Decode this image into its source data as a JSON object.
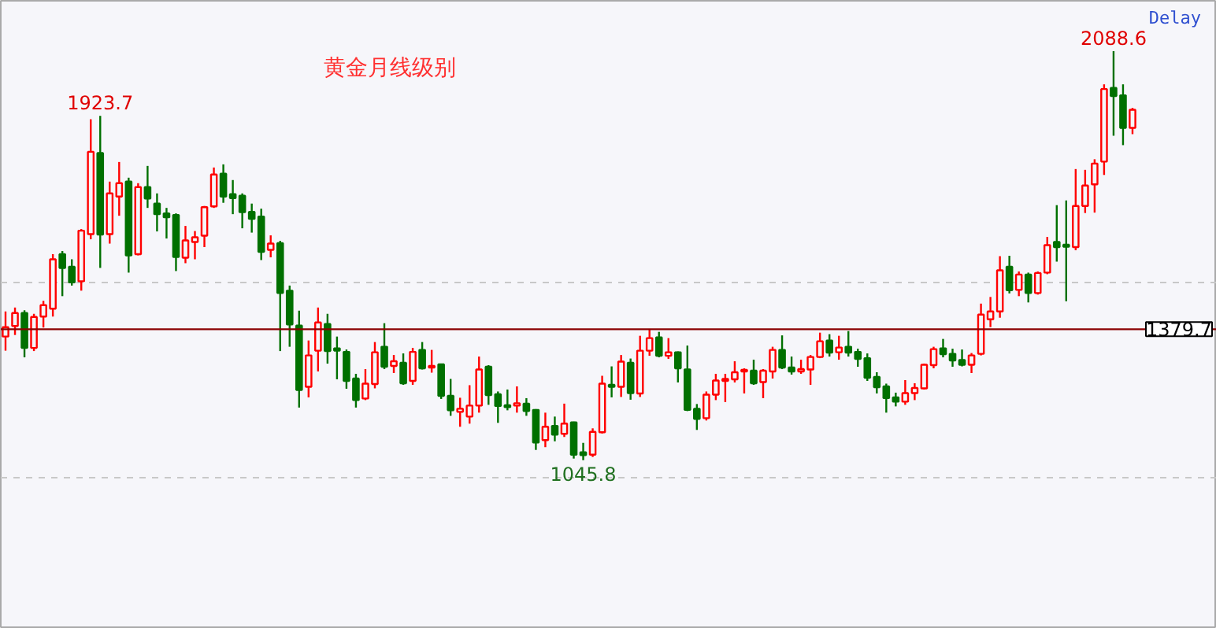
{
  "chart_data": {
    "type": "candlestick",
    "title": "黄金月线级别",
    "categories": [
      null,
      null,
      null,
      null,
      null,
      null,
      null,
      null,
      null,
      null,
      null,
      null,
      null,
      null,
      null,
      null,
      null,
      null,
      null,
      null,
      null,
      null,
      null,
      null,
      null,
      null,
      null,
      null,
      null,
      null,
      null,
      null,
      null,
      null,
      null,
      null,
      null,
      null,
      null,
      null,
      null,
      null,
      null,
      null,
      null,
      null,
      null,
      null,
      null,
      null,
      null,
      null,
      null,
      null,
      null,
      null,
      null,
      null,
      null,
      null,
      null,
      null,
      null,
      null,
      null,
      null,
      null,
      null,
      null,
      null,
      null,
      null,
      null,
      null,
      null,
      null,
      null,
      null,
      null,
      null,
      null,
      null,
      null,
      null,
      null,
      null,
      null,
      null,
      null,
      null,
      null,
      null,
      null,
      null,
      null,
      null,
      null,
      null,
      null,
      null,
      null,
      null,
      null,
      null,
      null,
      null,
      null,
      null,
      null,
      null,
      null,
      null,
      null,
      null,
      null,
      null,
      null,
      null,
      null,
      null
    ],
    "ohlc": [
      [
        1361,
        1425,
        1325,
        1385
      ],
      [
        1388,
        1435,
        1365,
        1421
      ],
      [
        1421,
        1428,
        1308,
        1332
      ],
      [
        1332,
        1419,
        1324,
        1411
      ],
      [
        1412,
        1452,
        1384,
        1441
      ],
      [
        1432,
        1571,
        1412,
        1558
      ],
      [
        1571,
        1579,
        1464,
        1536
      ],
      [
        1539,
        1558,
        1491,
        1499
      ],
      [
        1502,
        1635,
        1478,
        1631
      ],
      [
        1622,
        1915,
        1609,
        1832
      ],
      [
        1829,
        1923.7,
        1536,
        1621
      ],
      [
        1622,
        1756,
        1598,
        1726
      ],
      [
        1718,
        1806,
        1669,
        1752
      ],
      [
        1756,
        1766,
        1524,
        1568
      ],
      [
        1571,
        1752,
        1568,
        1742
      ],
      [
        1742,
        1796,
        1689,
        1713
      ],
      [
        1700,
        1726,
        1629,
        1673
      ],
      [
        1675,
        1689,
        1611,
        1665
      ],
      [
        1671,
        1675,
        1528,
        1564
      ],
      [
        1562,
        1643,
        1548,
        1606
      ],
      [
        1602,
        1630,
        1558,
        1614
      ],
      [
        1618,
        1694,
        1589,
        1691
      ],
      [
        1693,
        1792,
        1689,
        1774
      ],
      [
        1776,
        1800,
        1702,
        1718
      ],
      [
        1724,
        1760,
        1673,
        1714
      ],
      [
        1720,
        1726,
        1637,
        1678
      ],
      [
        1679,
        1700,
        1626,
        1661
      ],
      [
        1667,
        1687,
        1556,
        1577
      ],
      [
        1582,
        1619,
        1563,
        1598
      ],
      [
        1599,
        1605,
        1324,
        1472
      ],
      [
        1478,
        1491,
        1335,
        1392
      ],
      [
        1389,
        1427,
        1180,
        1225
      ],
      [
        1233,
        1351,
        1206,
        1313
      ],
      [
        1325,
        1435,
        1272,
        1397
      ],
      [
        1393,
        1419,
        1292,
        1324
      ],
      [
        1331,
        1361,
        1252,
        1325
      ],
      [
        1322,
        1328,
        1228,
        1248
      ],
      [
        1254,
        1266,
        1180,
        1199
      ],
      [
        1203,
        1278,
        1199,
        1241
      ],
      [
        1240,
        1347,
        1229,
        1321
      ],
      [
        1335,
        1395,
        1278,
        1284
      ],
      [
        1286,
        1314,
        1268,
        1298
      ],
      [
        1294,
        1318,
        1238,
        1242
      ],
      [
        1248,
        1332,
        1238,
        1322
      ],
      [
        1327,
        1347,
        1277,
        1280
      ],
      [
        1282,
        1327,
        1269,
        1286
      ],
      [
        1290,
        1292,
        1202,
        1210
      ],
      [
        1210,
        1253,
        1159,
        1173
      ],
      [
        1169,
        1205,
        1131,
        1177
      ],
      [
        1157,
        1237,
        1139,
        1185
      ],
      [
        1185,
        1310,
        1167,
        1277
      ],
      [
        1284,
        1288,
        1187,
        1212
      ],
      [
        1214,
        1221,
        1141,
        1184
      ],
      [
        1186,
        1226,
        1173,
        1181
      ],
      [
        1185,
        1234,
        1167,
        1191
      ],
      [
        1190,
        1204,
        1159,
        1171
      ],
      [
        1174,
        1176,
        1072,
        1091
      ],
      [
        1097,
        1167,
        1079,
        1131
      ],
      [
        1133,
        1157,
        1094,
        1111
      ],
      [
        1113,
        1190,
        1105,
        1139
      ],
      [
        1142,
        1144,
        1050,
        1060
      ],
      [
        1066,
        1090,
        1045.8,
        1059
      ],
      [
        1060,
        1127,
        1054,
        1118
      ],
      [
        1117,
        1261,
        1114,
        1241
      ],
      [
        1238,
        1285,
        1206,
        1233
      ],
      [
        1233,
        1314,
        1207,
        1297
      ],
      [
        1294,
        1305,
        1200,
        1217
      ],
      [
        1216,
        1363,
        1207,
        1325
      ],
      [
        1325,
        1379,
        1312,
        1357
      ],
      [
        1359,
        1373,
        1308,
        1312
      ],
      [
        1312,
        1357,
        1304,
        1321
      ],
      [
        1321,
        1323,
        1244,
        1280
      ],
      [
        1277,
        1338,
        1171,
        1174
      ],
      [
        1177,
        1189,
        1123,
        1151
      ],
      [
        1153,
        1221,
        1147,
        1213
      ],
      [
        1213,
        1266,
        1199,
        1249
      ],
      [
        1248,
        1266,
        1194,
        1253
      ],
      [
        1252,
        1298,
        1244,
        1270
      ],
      [
        1272,
        1280,
        1216,
        1276
      ],
      [
        1274,
        1302,
        1238,
        1242
      ],
      [
        1245,
        1278,
        1204,
        1274
      ],
      [
        1272,
        1335,
        1254,
        1327
      ],
      [
        1327,
        1364,
        1278,
        1282
      ],
      [
        1282,
        1310,
        1264,
        1272
      ],
      [
        1272,
        1302,
        1266,
        1278
      ],
      [
        1277,
        1314,
        1238,
        1309
      ],
      [
        1309,
        1371,
        1306,
        1349
      ],
      [
        1351,
        1367,
        1310,
        1320
      ],
      [
        1321,
        1363,
        1302,
        1333
      ],
      [
        1335,
        1375,
        1310,
        1320
      ],
      [
        1322,
        1330,
        1284,
        1304
      ],
      [
        1306,
        1318,
        1248,
        1256
      ],
      [
        1258,
        1270,
        1216,
        1232
      ],
      [
        1234,
        1241,
        1167,
        1204
      ],
      [
        1206,
        1218,
        1183,
        1195
      ],
      [
        1195,
        1250,
        1187,
        1217
      ],
      [
        1217,
        1242,
        1199,
        1230
      ],
      [
        1229,
        1292,
        1226,
        1289
      ],
      [
        1288,
        1335,
        1280,
        1329
      ],
      [
        1331,
        1355,
        1308,
        1316
      ],
      [
        1317,
        1330,
        1284,
        1300
      ],
      [
        1301,
        1328,
        1285,
        1289
      ],
      [
        1289,
        1319,
        1268,
        1313
      ],
      [
        1317,
        1445,
        1313,
        1417
      ],
      [
        1405,
        1462,
        1385,
        1425
      ],
      [
        1425,
        1566,
        1409,
        1530
      ],
      [
        1539,
        1567,
        1471,
        1479
      ],
      [
        1480,
        1527,
        1464,
        1519
      ],
      [
        1519,
        1524,
        1448,
        1472
      ],
      [
        1472,
        1527,
        1468,
        1523
      ],
      [
        1524,
        1615,
        1520,
        1594
      ],
      [
        1602,
        1696,
        1552,
        1589
      ],
      [
        1595,
        1708,
        1451,
        1590
      ],
      [
        1589,
        1788,
        1581,
        1694
      ],
      [
        1694,
        1786,
        1676,
        1746
      ],
      [
        1749,
        1813,
        1677,
        1802
      ],
      [
        1807,
        2004,
        1773,
        1992
      ],
      [
        1995,
        2088.6,
        1873,
        1974
      ],
      [
        1976,
        2004,
        1849,
        1893
      ],
      [
        1893,
        1944,
        1877,
        1939
      ]
    ],
    "colors": [
      "#ff0000",
      "#ff0000",
      "#007000",
      "#ff0000",
      "#ff0000",
      "#ff0000",
      "#007000",
      "#007000",
      "#ff0000",
      "#ff0000",
      "#007000",
      "#ff0000",
      "#ff0000",
      "#007000",
      "#ff0000",
      "#007000",
      "#007000",
      "#007000",
      "#007000",
      "#ff0000",
      "#ff0000",
      "#ff0000",
      "#ff0000",
      "#007000",
      "#007000",
      "#007000",
      "#007000",
      "#007000",
      "#ff0000",
      "#007000",
      "#007000",
      "#007000",
      "#ff0000",
      "#ff0000",
      "#007000",
      "#007000",
      "#007000",
      "#007000",
      "#ff0000",
      "#ff0000",
      "#007000",
      "#ff0000",
      "#007000",
      "#ff0000",
      "#007000",
      "#ff0000",
      "#007000",
      "#007000",
      "#ff0000",
      "#ff0000",
      "#ff0000",
      "#007000",
      "#007000",
      "#007000",
      "#ff0000",
      "#007000",
      "#007000",
      "#ff0000",
      "#007000",
      "#ff0000",
      "#007000",
      "#007000",
      "#ff0000",
      "#ff0000",
      "#007000",
      "#ff0000",
      "#007000",
      "#ff0000",
      "#ff0000",
      "#007000",
      "#ff0000",
      "#007000",
      "#007000",
      "#007000",
      "#ff0000",
      "#ff0000",
      "#ff0000",
      "#ff0000",
      "#ff0000",
      "#007000",
      "#ff0000",
      "#ff0000",
      "#007000",
      "#007000",
      "#ff0000",
      "#ff0000",
      "#ff0000",
      "#007000",
      "#ff0000",
      "#007000",
      "#007000",
      "#007000",
      "#007000",
      "#007000",
      "#007000",
      "#ff0000",
      "#ff0000",
      "#ff0000",
      "#ff0000",
      "#007000",
      "#007000",
      "#007000",
      "#ff0000",
      "#ff0000",
      "#ff0000",
      "#ff0000",
      "#007000",
      "#ff0000",
      "#007000",
      "#ff0000",
      "#ff0000",
      "#007000",
      "#007000",
      "#ff0000",
      "#ff0000",
      "#ff0000",
      "#ff0000",
      "#007000",
      "#007000",
      "#ff0000"
    ],
    "ylim": [
      616,
      2217
    ],
    "yticks": [
      {
        "value": 1000,
        "label": null
      },
      {
        "value": 1500,
        "label": null
      }
    ],
    "grid": "y",
    "tick_labels": false,
    "ref_lines": [
      {
        "axis": "y",
        "value": 1379.7,
        "label": "1379.7",
        "color": "#8b0000"
      }
    ],
    "annotations": [
      "Delay",
      {
        "text": "1923.7",
        "y": 1923.7
      },
      {
        "text": "2088.6",
        "y": 2088.6
      },
      {
        "text": "1045.8",
        "y": 1045.8
      }
    ]
  }
}
